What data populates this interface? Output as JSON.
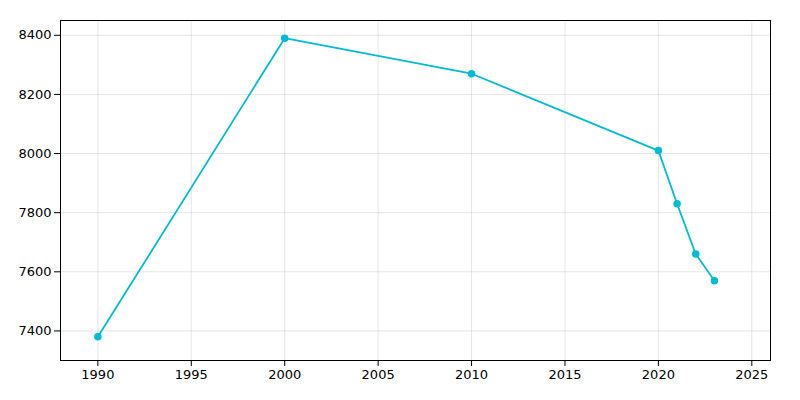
{
  "chart_data": {
    "type": "line",
    "x": [
      1990,
      2000,
      2010,
      2020,
      2021,
      2022,
      2023
    ],
    "values": [
      7380,
      8390,
      8270,
      8010,
      7830,
      7660,
      7570
    ],
    "color": "#00BCD4",
    "marker": "circle",
    "xlim": [
      1988,
      2026
    ],
    "ylim": [
      7300,
      8450
    ],
    "xticks": [
      1990,
      1995,
      2000,
      2005,
      2010,
      2015,
      2020,
      2025
    ],
    "yticks": [
      7400,
      7600,
      7800,
      8000,
      8200,
      8400
    ],
    "grid": true
  }
}
